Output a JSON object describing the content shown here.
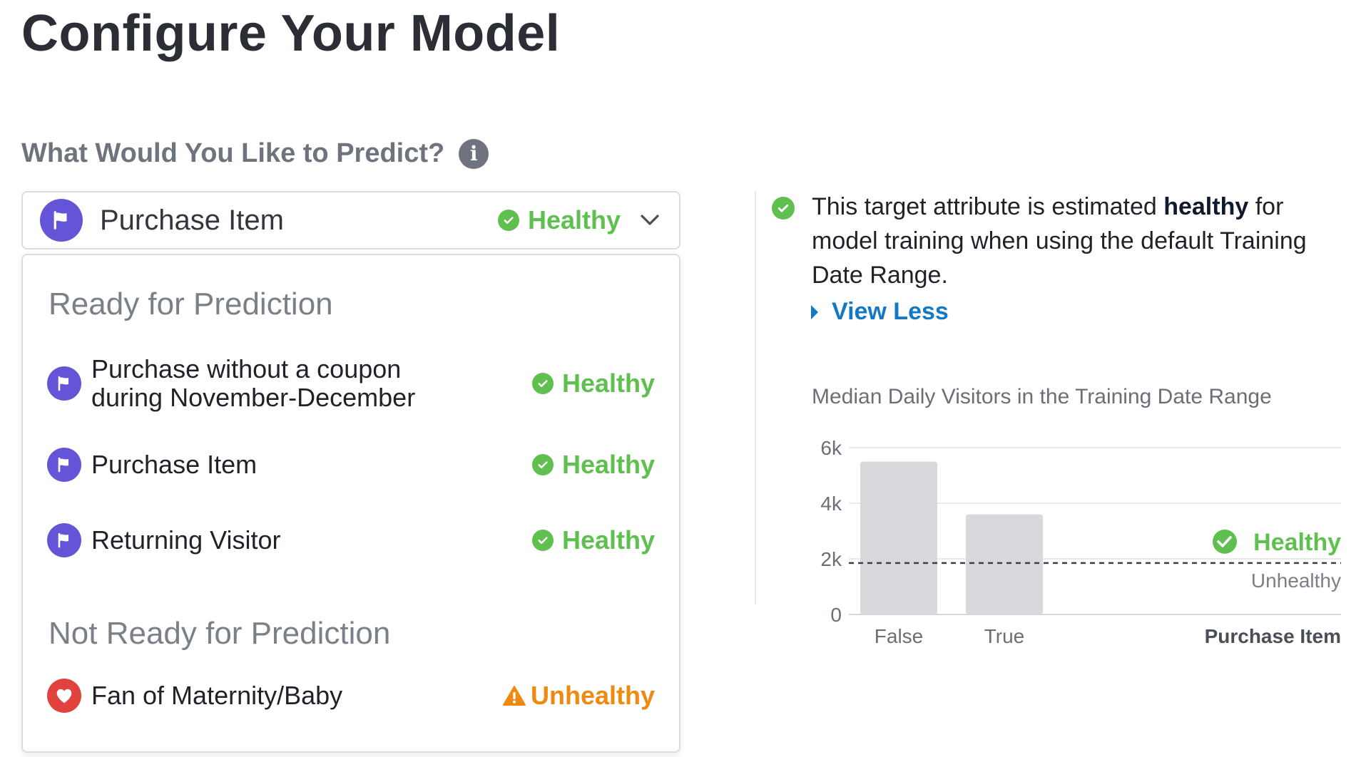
{
  "page": {
    "title": "Configure Your Model"
  },
  "predict": {
    "label": "What Would You Like to Predict?",
    "info_icon": "info-icon",
    "selected": {
      "label": "Purchase Item",
      "icon": "flag-icon",
      "status": "Healthy"
    }
  },
  "dropdown": {
    "groups": [
      {
        "title": "Ready for Prediction",
        "items": [
          {
            "label_line1": "Purchase without a coupon",
            "label_line2": "during November-December",
            "icon": "flag-icon",
            "status": "Healthy"
          },
          {
            "label": "Purchase Item",
            "icon": "flag-icon",
            "status": "Healthy"
          },
          {
            "label": "Returning Visitor",
            "icon": "flag-icon",
            "status": "Healthy"
          }
        ]
      },
      {
        "title": "Not Ready for Prediction",
        "items": [
          {
            "label": "Fan of Maternity/Baby",
            "icon": "heart-icon",
            "status": "Unhealthy"
          }
        ]
      }
    ]
  },
  "info": {
    "text_before": "This target attribute is estimated ",
    "text_bold": "healthy",
    "text_after": " for model training when using the default Training Date Range.",
    "view_less": "View Less"
  },
  "chart_data": {
    "type": "bar",
    "title": "Median Daily Visitors in the Training Date Range",
    "categories": [
      "False",
      "True"
    ],
    "values": [
      5500,
      3600
    ],
    "xlabel": "Purchase Item",
    "ylabel": "",
    "ylim": [
      0,
      6000
    ],
    "yticks": [
      0,
      2000,
      4000,
      6000
    ],
    "ytick_labels": [
      "0",
      "2k",
      "4k",
      "6k"
    ],
    "threshold": {
      "value": 1850,
      "above_label": "Healthy",
      "below_label": "Unhealthy"
    },
    "bar_color": "#d8d9dd"
  },
  "colors": {
    "accent": "#6354d8",
    "healthy": "#5fbf4f",
    "unhealthy": "#ee8a10",
    "link": "#1379c5",
    "heart": "#e0433d"
  }
}
